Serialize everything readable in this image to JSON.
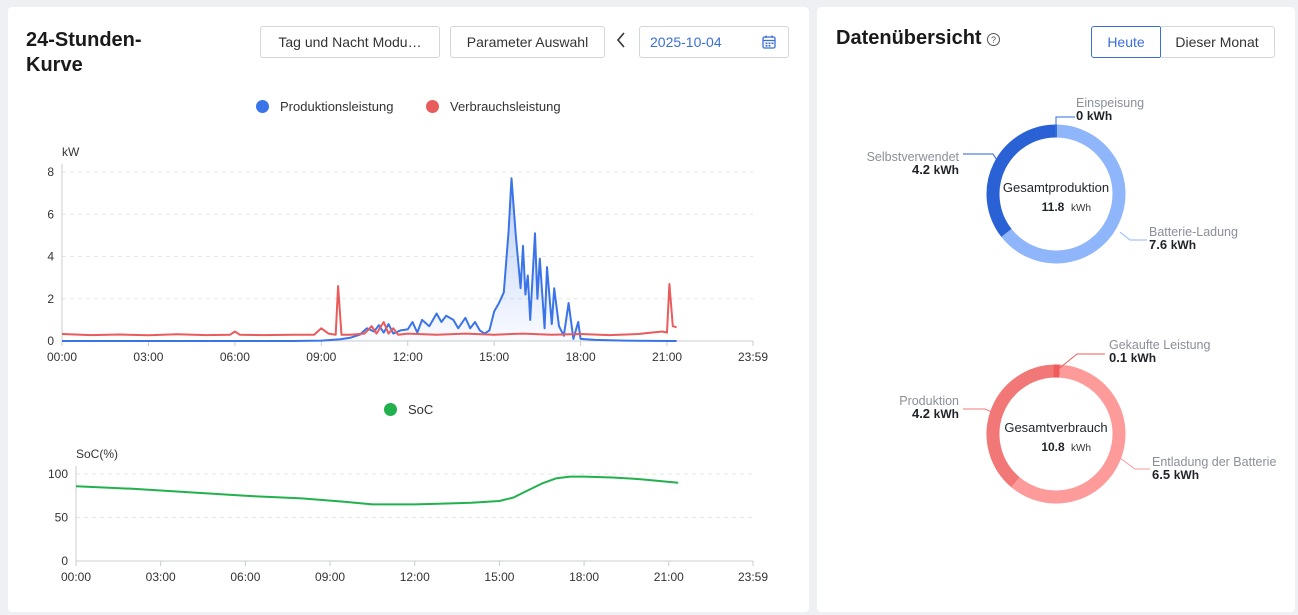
{
  "left": {
    "title_line1": "24-Stunden-",
    "title_line2": "Kurve",
    "mode_button": "Tag und Nacht Modu…",
    "param_button": "Parameter Auswahl",
    "prev_icon": "chevron-left-icon",
    "date": "2025-10-04",
    "calendar_icon": "calendar-icon"
  },
  "right": {
    "title": "Datenübersicht",
    "help_icon": "question-circle-icon",
    "tab_today": "Heute",
    "tab_month": "Dieser Monat",
    "production": {
      "center_label": "Gesamtproduktion",
      "center_value": "11.8",
      "center_unit": "kWh",
      "segments": [
        {
          "label": "Einspeisung",
          "value": "0",
          "unit": "kWh",
          "amount": 0,
          "color": "#2f6ee0"
        },
        {
          "label": "Selbstverwendet",
          "value": "4.2",
          "unit": "kWh",
          "amount": 4.2,
          "color": "#2a62d6"
        },
        {
          "label": "Batterie-Ladung",
          "value": "7.6",
          "unit": "kWh",
          "amount": 7.6,
          "color": "#8fb5fb"
        }
      ]
    },
    "consumption": {
      "center_label": "Gesamtverbrauch",
      "center_value": "10.8",
      "center_unit": "kWh",
      "segments": [
        {
          "label": "Gekaufte Leistung",
          "value": "0.1",
          "unit": "kWh",
          "amount": 0.1,
          "color": "#f05a5a"
        },
        {
          "label": "Produktion",
          "value": "4.2",
          "unit": "kWh",
          "amount": 4.2,
          "color": "#f27878"
        },
        {
          "label": "Entladung der Batterie",
          "value": "6.5",
          "unit": "kWh",
          "amount": 6.5,
          "color": "#fd9a9a"
        }
      ]
    }
  },
  "chart_data": [
    {
      "type": "line",
      "ylabel": "kW",
      "ylim": [
        0,
        8
      ],
      "yticks": [
        0,
        2,
        4,
        6,
        8
      ],
      "xlim": [
        "00:00",
        "23:59"
      ],
      "xticks": [
        "00:00",
        "03:00",
        "06:00",
        "09:00",
        "12:00",
        "15:00",
        "18:00",
        "21:00",
        "23:59"
      ],
      "legend_position": "top-center",
      "grid": true,
      "series": [
        {
          "name": "Produktionsleistung",
          "color": "#3b74e8",
          "area": true,
          "points": [
            [
              "00:00",
              0
            ],
            [
              "08:00",
              0
            ],
            [
              "09:00",
              0.02
            ],
            [
              "09:40",
              0.08
            ],
            [
              "10:00",
              0.15
            ],
            [
              "10:20",
              0.3
            ],
            [
              "10:35",
              0.6
            ],
            [
              "10:50",
              0.45
            ],
            [
              "11:00",
              0.75
            ],
            [
              "11:10",
              0.4
            ],
            [
              "11:20",
              0.8
            ],
            [
              "11:30",
              0.35
            ],
            [
              "11:45",
              0.5
            ],
            [
              "12:00",
              0.55
            ],
            [
              "12:10",
              0.9
            ],
            [
              "12:20",
              0.4
            ],
            [
              "12:30",
              1.0
            ],
            [
              "12:45",
              0.7
            ],
            [
              "13:00",
              1.3
            ],
            [
              "13:10",
              0.9
            ],
            [
              "13:20",
              1.2
            ],
            [
              "13:35",
              1.0
            ],
            [
              "13:45",
              0.6
            ],
            [
              "14:00",
              1.1
            ],
            [
              "14:10",
              0.6
            ],
            [
              "14:20",
              0.9
            ],
            [
              "14:30",
              0.5
            ],
            [
              "14:40",
              0.35
            ],
            [
              "14:50",
              0.5
            ],
            [
              "15:00",
              1.4
            ],
            [
              "15:10",
              1.8
            ],
            [
              "15:20",
              2.3
            ],
            [
              "15:30",
              5.2
            ],
            [
              "15:36",
              7.7
            ],
            [
              "15:45",
              5.0
            ],
            [
              "15:55",
              2.5
            ],
            [
              "16:00",
              4.5
            ],
            [
              "16:05",
              2.2
            ],
            [
              "16:10",
              3.1
            ],
            [
              "16:15",
              1.0
            ],
            [
              "16:25",
              5.1
            ],
            [
              "16:30",
              2.0
            ],
            [
              "16:35",
              3.9
            ],
            [
              "16:45",
              0.6
            ],
            [
              "16:50",
              3.5
            ],
            [
              "17:00",
              0.8
            ],
            [
              "17:05",
              2.5
            ],
            [
              "17:15",
              0.7
            ],
            [
              "17:25",
              0.25
            ],
            [
              "17:35",
              1.8
            ],
            [
              "17:45",
              0.1
            ],
            [
              "17:55",
              0.9
            ],
            [
              "18:00",
              0.1
            ],
            [
              "18:30",
              0.05
            ],
            [
              "19:30",
              0.02
            ],
            [
              "21:10",
              0
            ],
            [
              "21:20",
              0
            ]
          ]
        },
        {
          "name": "Verbrauchsleistung",
          "color": "#e85c5c",
          "area": false,
          "points": [
            [
              "00:00",
              0.33
            ],
            [
              "01:00",
              0.28
            ],
            [
              "02:00",
              0.31
            ],
            [
              "03:00",
              0.27
            ],
            [
              "04:00",
              0.32
            ],
            [
              "05:00",
              0.28
            ],
            [
              "05:50",
              0.3
            ],
            [
              "06:00",
              0.45
            ],
            [
              "06:10",
              0.3
            ],
            [
              "07:00",
              0.28
            ],
            [
              "08:00",
              0.3
            ],
            [
              "08:45",
              0.3
            ],
            [
              "09:00",
              0.6
            ],
            [
              "09:15",
              0.35
            ],
            [
              "09:30",
              0.3
            ],
            [
              "09:35",
              2.6
            ],
            [
              "09:42",
              0.3
            ],
            [
              "10:00",
              0.3
            ],
            [
              "10:30",
              0.35
            ],
            [
              "10:45",
              0.7
            ],
            [
              "10:55",
              0.35
            ],
            [
              "11:10",
              0.9
            ],
            [
              "11:20",
              0.35
            ],
            [
              "11:30",
              0.6
            ],
            [
              "11:40",
              0.3
            ],
            [
              "12:00",
              0.35
            ],
            [
              "13:00",
              0.3
            ],
            [
              "14:00",
              0.35
            ],
            [
              "15:00",
              0.3
            ],
            [
              "16:00",
              0.35
            ],
            [
              "17:00",
              0.3
            ],
            [
              "18:00",
              0.33
            ],
            [
              "19:00",
              0.28
            ],
            [
              "20:00",
              0.33
            ],
            [
              "20:50",
              0.45
            ],
            [
              "21:00",
              0.4
            ],
            [
              "21:05",
              2.7
            ],
            [
              "21:12",
              0.7
            ],
            [
              "21:20",
              0.65
            ]
          ]
        }
      ]
    },
    {
      "type": "line",
      "ylabel": "SoC(%)",
      "ylim": [
        0,
        100
      ],
      "yticks": [
        0,
        50,
        100
      ],
      "xlim": [
        "00:00",
        "23:59"
      ],
      "xticks": [
        "00:00",
        "03:00",
        "06:00",
        "09:00",
        "12:00",
        "15:00",
        "18:00",
        "21:00",
        "23:59"
      ],
      "legend_position": "top-center",
      "grid": true,
      "series": [
        {
          "name": "SoC",
          "color": "#22b14c",
          "points": [
            [
              "00:00",
              86
            ],
            [
              "02:00",
              83
            ],
            [
              "04:00",
              79
            ],
            [
              "06:00",
              75
            ],
            [
              "08:00",
              72
            ],
            [
              "09:30",
              68
            ],
            [
              "10:30",
              65
            ],
            [
              "12:00",
              65
            ],
            [
              "13:00",
              66
            ],
            [
              "14:00",
              67
            ],
            [
              "15:00",
              69
            ],
            [
              "15:30",
              73
            ],
            [
              "16:00",
              81
            ],
            [
              "16:30",
              89
            ],
            [
              "17:00",
              95
            ],
            [
              "17:30",
              97
            ],
            [
              "18:00",
              97
            ],
            [
              "19:00",
              96
            ],
            [
              "20:00",
              94
            ],
            [
              "21:20",
              90
            ]
          ]
        }
      ]
    }
  ]
}
